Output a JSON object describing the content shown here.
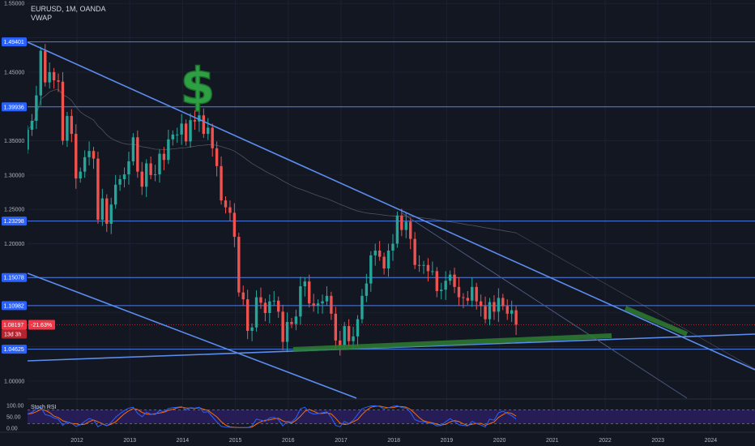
{
  "header": {
    "symbol_line": "EURUSD, 1M, OANDA",
    "indicator_line": "VWAP"
  },
  "price_axis": {
    "labels": [
      "1.55000",
      "1.45000",
      "1.35000",
      "1.30000",
      "1.25000",
      "1.20000",
      "1.00000"
    ]
  },
  "badges": [
    {
      "label": "1.49401",
      "value": 1.49401,
      "color": "#2962ff"
    },
    {
      "label": "1.39936",
      "value": 1.39936,
      "color": "#2962ff"
    },
    {
      "label": "1.23298",
      "value": 1.23298,
      "color": "#2962ff"
    },
    {
      "label": "1.15078",
      "value": 1.15078,
      "color": "#2962ff"
    },
    {
      "label": "1.10982",
      "value": 1.10982,
      "color": "#2962ff"
    },
    {
      "label": "1.04625",
      "value": 1.04625,
      "color": "#2962ff"
    }
  ],
  "current": {
    "price_label": "1.08197",
    "change_label": "-21.63%",
    "countdown": "13d 3h",
    "value": 1.08197,
    "color": "#f23645"
  },
  "oscillator": {
    "name": "Stoch RSI",
    "labels": [
      "100.00",
      "50.00",
      "0.00"
    ],
    "band_upper": 80,
    "band_lower": 20
  },
  "icons": {
    "dollar": "dollar-sign-icon"
  },
  "colors": {
    "background": "#131722",
    "up": "#26a69a",
    "down": "#ef5350",
    "trendline": "#5b8def",
    "highlight": "#2e7d32",
    "vwap": "#787b86",
    "k_line": "#2962ff",
    "d_line": "#ff6d00",
    "band_fill": "#2a1e5c"
  },
  "chart_data": {
    "type": "candlestick",
    "symbol": "EURUSD",
    "timeframe": "1M",
    "source": "OANDA",
    "x_axis_labels": [
      "2012",
      "2013",
      "2014",
      "2015",
      "2016",
      "2017",
      "2018",
      "2019",
      "2020",
      "2021",
      "2022",
      "2023",
      "2024"
    ],
    "ylim": [
      0.975,
      1.555
    ],
    "horizontal_levels": [
      1.49401,
      1.39936,
      1.23298,
      1.15078,
      1.10982,
      1.04625
    ],
    "monthly_close": [
      1.366,
      1.379,
      1.416,
      1.481,
      1.435,
      1.45,
      1.438,
      1.436,
      1.35,
      1.386,
      1.36,
      1.295,
      1.305,
      1.326,
      1.335,
      1.324,
      1.235,
      1.266,
      1.229,
      1.257,
      1.286,
      1.294,
      1.301,
      1.32,
      1.355,
      1.305,
      1.283,
      1.317,
      1.3,
      1.301,
      1.331,
      1.322,
      1.352,
      1.359,
      1.359,
      1.375,
      1.349,
      1.38,
      1.378,
      1.387,
      1.36,
      1.369,
      1.339,
      1.313,
      1.263,
      1.253,
      1.245,
      1.21,
      1.129,
      1.119,
      1.073,
      1.078,
      1.122,
      1.114,
      1.099,
      1.116,
      1.117,
      1.101,
      1.057,
      1.086,
      1.083,
      1.094,
      1.138,
      1.145,
      1.113,
      1.11,
      1.113,
      1.116,
      1.124,
      1.098,
      1.059,
      1.052,
      1.08,
      1.058,
      1.065,
      1.09,
      1.124,
      1.142,
      1.183,
      1.19,
      1.181,
      1.164,
      1.19,
      1.2,
      1.241,
      1.22,
      1.232,
      1.207,
      1.169,
      1.168,
      1.169,
      1.16,
      1.16,
      1.131,
      1.133,
      1.146,
      1.155,
      1.137,
      1.122,
      1.121,
      1.117,
      1.137,
      1.116,
      1.109,
      1.09,
      1.115,
      1.101,
      1.121,
      1.109,
      1.098,
      1.103,
      1.082
    ],
    "stoch_rsi": [
      62,
      70,
      85,
      92,
      60,
      55,
      45,
      40,
      12,
      28,
      22,
      8,
      15,
      30,
      42,
      36,
      6,
      18,
      10,
      25,
      48,
      64,
      78,
      88,
      92,
      66,
      50,
      70,
      62,
      60,
      78,
      72,
      86,
      90,
      92,
      95,
      80,
      90,
      88,
      92,
      70,
      72,
      50,
      28,
      8,
      5,
      4,
      3,
      2,
      3,
      2,
      10,
      40,
      35,
      30,
      45,
      48,
      38,
      10,
      30,
      28,
      45,
      85,
      92,
      70,
      62,
      64,
      68,
      72,
      48,
      12,
      6,
      30,
      20,
      35,
      60,
      85,
      92,
      98,
      99,
      95,
      85,
      90,
      96,
      99,
      90,
      88,
      70,
      38,
      30,
      28,
      22,
      20,
      10,
      12,
      28,
      42,
      30,
      15,
      12,
      10,
      30,
      20,
      14,
      5,
      40,
      35,
      68,
      75,
      65,
      55,
      40
    ]
  }
}
